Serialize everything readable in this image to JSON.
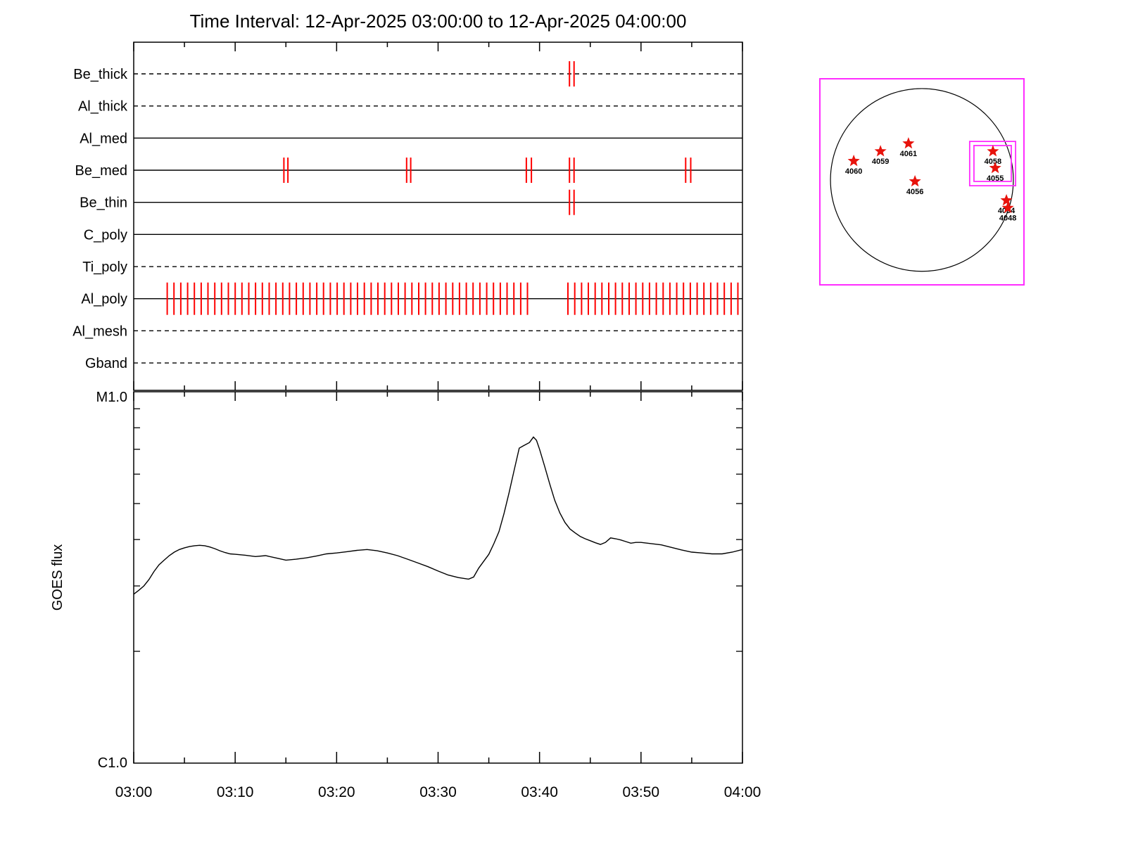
{
  "title": "Time Interval: 12-Apr-2025 03:00:00 to 12-Apr-2025 04:00:00",
  "colors": {
    "axis": "#000000",
    "event_tick": "#ff0000",
    "star": "#e8130c",
    "inset_border": "#ff2dff"
  },
  "chart_data": [
    {
      "id": "filter_timeline",
      "type": "event-timeline",
      "x_range_minutes": [
        0,
        60
      ],
      "rows": [
        {
          "label": "Be_thick",
          "line_style": "dashed",
          "events_min": [
            42.95,
            43.4
          ]
        },
        {
          "label": "Al_thick",
          "line_style": "dashed",
          "events_min": []
        },
        {
          "label": "Al_med",
          "line_style": "solid",
          "events_min": []
        },
        {
          "label": "Be_med",
          "line_style": "solid",
          "events_min": [
            14.8,
            15.2,
            26.9,
            27.3,
            38.7,
            39.2,
            42.95,
            43.4,
            54.4,
            54.9
          ]
        },
        {
          "label": "Be_thin",
          "line_style": "solid",
          "events_min": [
            42.95,
            43.4
          ]
        },
        {
          "label": "C_poly",
          "line_style": "solid",
          "events_min": []
        },
        {
          "label": "Ti_poly",
          "line_style": "dashed",
          "events_min": []
        },
        {
          "label": "Al_poly",
          "line_style": "solid",
          "events_min": [],
          "event_ranges": [
            {
              "start_min": 3.3,
              "end_min": 39.4,
              "step_min": 0.67
            },
            {
              "start_min": 42.8,
              "end_min": 59.9,
              "step_min": 0.67
            }
          ]
        },
        {
          "label": "Al_mesh",
          "line_style": "dashed",
          "events_min": []
        },
        {
          "label": "Gband",
          "line_style": "dashed",
          "events_min": []
        }
      ]
    },
    {
      "id": "goes",
      "type": "line",
      "ylabel": "GOES flux",
      "y_scale": "log",
      "y_top_label": "M1.0",
      "y_bottom_label": "C1.0",
      "y_minor_c_units": [
        2,
        3,
        4,
        5,
        6,
        7,
        8,
        9
      ],
      "x_minor_every_min": 5,
      "x_tick_minutes": [
        0,
        10,
        20,
        30,
        40,
        50,
        60
      ],
      "x_tick_labels": [
        "03:00",
        "03:10",
        "03:20",
        "03:30",
        "03:40",
        "03:50",
        "04:00"
      ],
      "series": [
        {
          "name": "GOES flux",
          "points": [
            [
              0,
              2.85
            ],
            [
              0.5,
              2.92
            ],
            [
              1,
              3.0
            ],
            [
              1.5,
              3.12
            ],
            [
              2,
              3.28
            ],
            [
              2.5,
              3.42
            ],
            [
              3,
              3.52
            ],
            [
              3.5,
              3.62
            ],
            [
              4,
              3.7
            ],
            [
              4.5,
              3.76
            ],
            [
              5,
              3.8
            ],
            [
              5.5,
              3.83
            ],
            [
              6,
              3.85
            ],
            [
              6.5,
              3.86
            ],
            [
              7,
              3.85
            ],
            [
              7.5,
              3.82
            ],
            [
              8,
              3.78
            ],
            [
              8.5,
              3.73
            ],
            [
              9,
              3.69
            ],
            [
              9.5,
              3.66
            ],
            [
              10,
              3.65
            ],
            [
              11,
              3.63
            ],
            [
              12,
              3.6
            ],
            [
              13,
              3.62
            ],
            [
              14,
              3.57
            ],
            [
              15,
              3.52
            ],
            [
              16,
              3.54
            ],
            [
              17,
              3.57
            ],
            [
              18,
              3.61
            ],
            [
              19,
              3.66
            ],
            [
              20,
              3.68
            ],
            [
              21,
              3.71
            ],
            [
              22,
              3.74
            ],
            [
              23,
              3.76
            ],
            [
              24,
              3.73
            ],
            [
              25,
              3.68
            ],
            [
              26,
              3.62
            ],
            [
              27,
              3.54
            ],
            [
              28,
              3.46
            ],
            [
              29,
              3.38
            ],
            [
              30,
              3.29
            ],
            [
              31,
              3.21
            ],
            [
              32,
              3.16
            ],
            [
              33,
              3.13
            ],
            [
              33.5,
              3.17
            ],
            [
              34,
              3.35
            ],
            [
              35,
              3.65
            ],
            [
              35.5,
              3.9
            ],
            [
              36,
              4.2
            ],
            [
              36.5,
              4.7
            ],
            [
              37,
              5.35
            ],
            [
              37.5,
              6.15
            ],
            [
              38,
              7.05
            ],
            [
              38.4,
              7.15
            ],
            [
              39,
              7.3
            ],
            [
              39.4,
              7.55
            ],
            [
              39.7,
              7.4
            ],
            [
              40,
              7.0
            ],
            [
              40.5,
              6.3
            ],
            [
              41,
              5.65
            ],
            [
              41.5,
              5.1
            ],
            [
              42,
              4.72
            ],
            [
              42.5,
              4.45
            ],
            [
              43,
              4.27
            ],
            [
              43.5,
              4.17
            ],
            [
              44,
              4.08
            ],
            [
              44.5,
              4.02
            ],
            [
              45,
              3.97
            ],
            [
              45.5,
              3.92
            ],
            [
              46,
              3.88
            ],
            [
              46.5,
              3.93
            ],
            [
              47,
              4.04
            ],
            [
              47.5,
              4.02
            ],
            [
              48,
              3.99
            ],
            [
              48.5,
              3.95
            ],
            [
              49,
              3.91
            ],
            [
              49.5,
              3.93
            ],
            [
              50,
              3.93
            ],
            [
              51,
              3.9
            ],
            [
              52,
              3.87
            ],
            [
              53,
              3.81
            ],
            [
              54,
              3.75
            ],
            [
              55,
              3.7
            ],
            [
              56,
              3.68
            ],
            [
              57,
              3.66
            ],
            [
              58,
              3.66
            ],
            [
              59,
              3.7
            ],
            [
              60,
              3.76
            ]
          ]
        }
      ]
    },
    {
      "id": "sun_inset",
      "type": "scatter",
      "disk": {
        "fcx": 0.5,
        "fcy": 0.491,
        "fr_of_width": 0.448
      },
      "fov_box": {
        "fx0": 0.734,
        "fy0": 0.304,
        "fx1": 0.959,
        "fy1": 0.519
      },
      "fov_box_inner": {
        "fx0": 0.755,
        "fy0": 0.324,
        "fx1": 0.938,
        "fy1": 0.498
      },
      "active_regions": [
        {
          "id": "4060",
          "fx": 0.166,
          "fy": 0.399
        },
        {
          "id": "4059",
          "fx": 0.297,
          "fy": 0.352
        },
        {
          "id": "4061",
          "fx": 0.434,
          "fy": 0.314
        },
        {
          "id": "4056",
          "fx": 0.466,
          "fy": 0.498
        },
        {
          "id": "4058",
          "fx": 0.848,
          "fy": 0.352
        },
        {
          "id": "4055",
          "fx": 0.859,
          "fy": 0.433
        },
        {
          "id": "4054",
          "fx": 0.914,
          "fy": 0.59
        },
        {
          "id": "4048",
          "fx": 0.921,
          "fy": 0.627
        }
      ]
    }
  ]
}
